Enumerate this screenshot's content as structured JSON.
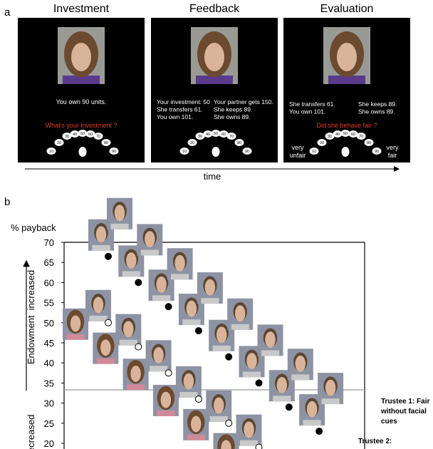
{
  "panel_a": {
    "label": "a",
    "screens": [
      {
        "title": "Investment",
        "center_lines": [
          "You own 90 units."
        ],
        "left_lines": [],
        "right_lines": [],
        "question": "What's your investment ?"
      },
      {
        "title": "Feedback",
        "center_lines": [],
        "left_lines": [
          "Your investment: 50",
          "She transfers 61.",
          "You own 101."
        ],
        "right_lines": [
          "Your partner gets 150.",
          "She keeps 89.",
          "She owns 89."
        ],
        "question": null
      },
      {
        "title": "Evaluation",
        "center_lines": [],
        "left_lines": [
          "She transfers 61.",
          "You own 101."
        ],
        "right_lines": [
          "She keeps 89.",
          "She owns 89."
        ],
        "question": "Did she behave fair ?"
      }
    ],
    "scale": [
      "10",
      "20",
      "30",
      "40",
      "50",
      "60",
      "70",
      "80",
      "90"
    ],
    "scale_low": "very unfair",
    "scale_high": "very fair",
    "time_label": "time"
  },
  "chart_data": {
    "type": "scatter",
    "panel_label": "b",
    "ylabel": "% payback",
    "arrow_up_label": "Endowment  increased",
    "arrow_down_label": "decreased",
    "categories": [
      null,
      null,
      null,
      null,
      null,
      null,
      null,
      null
    ],
    "series": [
      {
        "name": "Trustee 1: Fair without facial cues",
        "color": "#000000",
        "marker": "filled",
        "values": [
          66.5,
          60,
          54,
          48,
          41.5,
          35,
          29,
          23
        ]
      },
      {
        "name": "Trustee 2:",
        "color": "#000000",
        "marker": "open",
        "values": [
          50,
          44,
          37.5,
          31,
          25,
          19,
          null,
          null
        ]
      }
    ],
    "hline": 33.3,
    "ylim": [
      20,
      70
    ],
    "yticks": [
      70,
      65,
      60,
      55,
      50,
      45,
      40,
      35,
      30,
      25,
      20
    ]
  }
}
